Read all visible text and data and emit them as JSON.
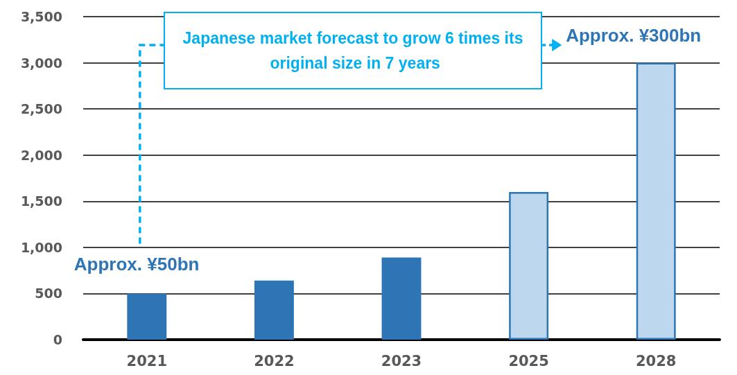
{
  "chart_data": {
    "type": "bar",
    "categories": [
      "2021",
      "2022",
      "2023",
      "2025",
      "2028"
    ],
    "values": [
      500,
      640,
      890,
      1600,
      3000
    ],
    "colors": [
      "#2e75b6",
      "#2e75b6",
      "#2e75b6",
      "#bdd7ee",
      "#bdd7ee"
    ],
    "ylim": [
      0,
      3500
    ],
    "yticks": [
      0,
      500,
      {
        "value": 1000,
        "label": "1,000"
      },
      {
        "value": 1500,
        "label": "1,500"
      },
      {
        "value": 2000,
        "label": "2,000"
      },
      {
        "value": 2500,
        "label": "2,500"
      },
      {
        "value": 3000,
        "label": "3,000"
      },
      {
        "value": 3500,
        "label": "3,500"
      }
    ],
    "grid": "y",
    "annotations": [
      "Japanese market forecast to grow 6 times its original size in 7 years",
      {
        "text": "Approx. ¥50bn",
        "x": "2021",
        "y": 500
      },
      {
        "text": "Approx. ¥300bn",
        "x": "2028",
        "y": 3000
      }
    ]
  }
}
